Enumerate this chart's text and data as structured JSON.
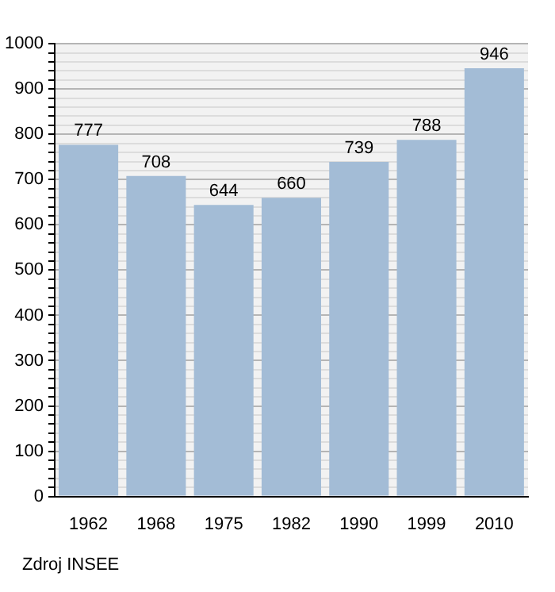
{
  "chart_data": {
    "type": "bar",
    "categories": [
      "1962",
      "1968",
      "1975",
      "1982",
      "1990",
      "1999",
      "2010"
    ],
    "values": [
      777,
      708,
      644,
      660,
      739,
      788,
      946
    ],
    "color": "#a3bcd6",
    "ylim": [
      0,
      1000
    ],
    "yticks": [
      0,
      {
        "value": 20,
        "label": null
      },
      {
        "value": 40,
        "label": null
      },
      {
        "value": 60,
        "label": null
      },
      {
        "value": 80,
        "label": null
      },
      100,
      {
        "value": 120,
        "label": null
      },
      {
        "value": 140,
        "label": null
      },
      {
        "value": 160,
        "label": null
      },
      {
        "value": 180,
        "label": null
      },
      200,
      {
        "value": 220,
        "label": null
      },
      {
        "value": 240,
        "label": null
      },
      {
        "value": 260,
        "label": null
      },
      {
        "value": 280,
        "label": null
      },
      300,
      {
        "value": 320,
        "label": null
      },
      {
        "value": 340,
        "label": null
      },
      {
        "value": 360,
        "label": null
      },
      {
        "value": 380,
        "label": null
      },
      400,
      {
        "value": 420,
        "label": null
      },
      {
        "value": 440,
        "label": null
      },
      {
        "value": 460,
        "label": null
      },
      {
        "value": 480,
        "label": null
      },
      500,
      {
        "value": 520,
        "label": null
      },
      {
        "value": 540,
        "label": null
      },
      {
        "value": 560,
        "label": null
      },
      {
        "value": 580,
        "label": null
      },
      600,
      {
        "value": 620,
        "label": null
      },
      {
        "value": 640,
        "label": null
      },
      {
        "value": 660,
        "label": null
      },
      {
        "value": 680,
        "label": null
      },
      700,
      {
        "value": 720,
        "label": null
      },
      {
        "value": 740,
        "label": null
      },
      {
        "value": 760,
        "label": null
      },
      {
        "value": 780,
        "label": null
      },
      800,
      {
        "value": 820,
        "label": null
      },
      {
        "value": 840,
        "label": null
      },
      {
        "value": 860,
        "label": null
      },
      {
        "value": 880,
        "label": null
      },
      900,
      {
        "value": 920,
        "label": null
      },
      {
        "value": 940,
        "label": null
      },
      {
        "value": 960,
        "label": null
      },
      {
        "value": 980,
        "label": null
      },
      1000
    ],
    "grid": "y",
    "data_labels": true,
    "annotations": [
      "Zdroj INSEE"
    ]
  }
}
